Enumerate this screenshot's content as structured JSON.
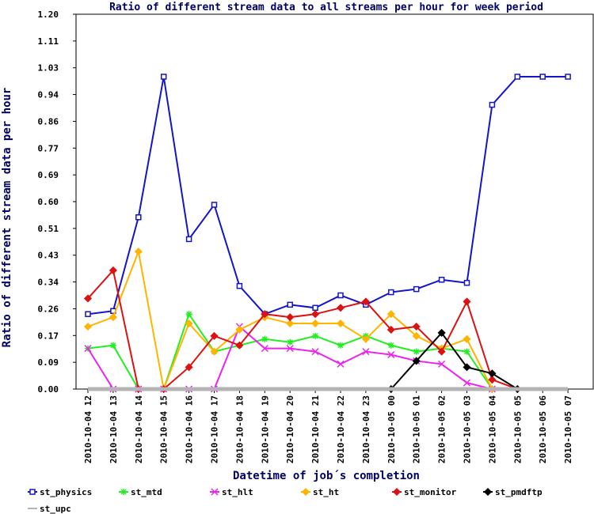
{
  "chart_data": {
    "type": "line",
    "title": "Ratio of different stream data to all streams per hour for week period",
    "x_label": "Datetime of job´s completion",
    "y_label": "Ratio of different stream data per hour",
    "categories": [
      "2010-10-04 12",
      "2010-10-04 13",
      "2010-10-04 14",
      "2010-10-04 15",
      "2010-10-04 16",
      "2010-10-04 17",
      "2010-10-04 18",
      "2010-10-04 19",
      "2010-10-04 20",
      "2010-10-04 21",
      "2010-10-04 22",
      "2010-10-04 23",
      "2010-10-05 00",
      "2010-10-05 01",
      "2010-10-05 02",
      "2010-10-05 03",
      "2010-10-05 04",
      "2010-10-05 05",
      "2010-10-05 06",
      "2010-10-05 07"
    ],
    "ylim": [
      0,
      1.2
    ],
    "yticks": [
      {
        "value": 0,
        "label": "0.00"
      },
      {
        "value": 0.0857,
        "label": "0.09"
      },
      {
        "value": 0.1714,
        "label": "0.17"
      },
      {
        "value": 0.2571,
        "label": "0.26"
      },
      {
        "value": 0.3429,
        "label": "0.34"
      },
      {
        "value": 0.4286,
        "label": "0.43"
      },
      {
        "value": 0.5143,
        "label": "0.51"
      },
      {
        "value": 0.6,
        "label": "0.60"
      },
      {
        "value": 0.6857,
        "label": "0.69"
      },
      {
        "value": 0.7714,
        "label": "0.77"
      },
      {
        "value": 0.8571,
        "label": "0.86"
      },
      {
        "value": 0.9429,
        "label": "0.94"
      },
      {
        "value": 1.0286,
        "label": "1.03"
      },
      {
        "value": 1.1143,
        "label": "1.11"
      },
      {
        "value": 1.2,
        "label": "1.20"
      }
    ],
    "series": [
      {
        "name": "st_physics",
        "color": "#1414c8",
        "marker": "square",
        "values": [
          0.24,
          0.25,
          0.55,
          1.0,
          0.48,
          0.59,
          0.33,
          0.24,
          0.27,
          0.26,
          0.3,
          0.27,
          0.31,
          0.32,
          0.35,
          0.34,
          0.91,
          1.0,
          1.0,
          1.0
        ]
      },
      {
        "name": "st_mtd",
        "color": "#22ee22",
        "marker": "star",
        "values": [
          0.13,
          0.14,
          0,
          0,
          0.24,
          0.12,
          0.14,
          0.16,
          0.15,
          0.17,
          0.14,
          0.17,
          0.14,
          0.12,
          0.13,
          0.12,
          0,
          null,
          null,
          null
        ]
      },
      {
        "name": "st_hlt",
        "color": "#ee22ee",
        "marker": "cross",
        "values": [
          0.13,
          0,
          0,
          0,
          0,
          0,
          0.2,
          0.13,
          0.13,
          0.12,
          0.08,
          0.12,
          0.11,
          0.09,
          0.08,
          0.02,
          0,
          null,
          null,
          null
        ]
      },
      {
        "name": "st_ht",
        "color": "#ffb400",
        "marker": "diamond",
        "values": [
          0.2,
          0.23,
          0.44,
          0,
          0.21,
          0.12,
          0.19,
          0.23,
          0.21,
          0.21,
          0.21,
          0.16,
          0.24,
          0.17,
          0.13,
          0.16,
          0,
          null,
          null,
          null
        ]
      },
      {
        "name": "st_monitor",
        "color": "#dd1111",
        "marker": "diamond",
        "values": [
          0.29,
          0.38,
          0,
          0,
          0.07,
          0.17,
          0.14,
          0.24,
          0.23,
          0.24,
          0.26,
          0.28,
          0.19,
          0.2,
          0.12,
          0.28,
          0.03,
          0,
          null,
          null
        ]
      },
      {
        "name": "st_pmdftp",
        "color": "#000000",
        "marker": "diamond",
        "values": [
          null,
          null,
          null,
          null,
          null,
          null,
          null,
          null,
          null,
          null,
          null,
          null,
          0,
          0.09,
          0.18,
          0.07,
          0.05,
          0,
          null,
          null
        ]
      },
      {
        "name": "st_upc",
        "color": "#b4b4b4",
        "marker": "none",
        "values": [
          0,
          0,
          0,
          0,
          0,
          0,
          0,
          0,
          0,
          0,
          0,
          0,
          0,
          0,
          0,
          0,
          0,
          0,
          0,
          0
        ]
      }
    ]
  }
}
